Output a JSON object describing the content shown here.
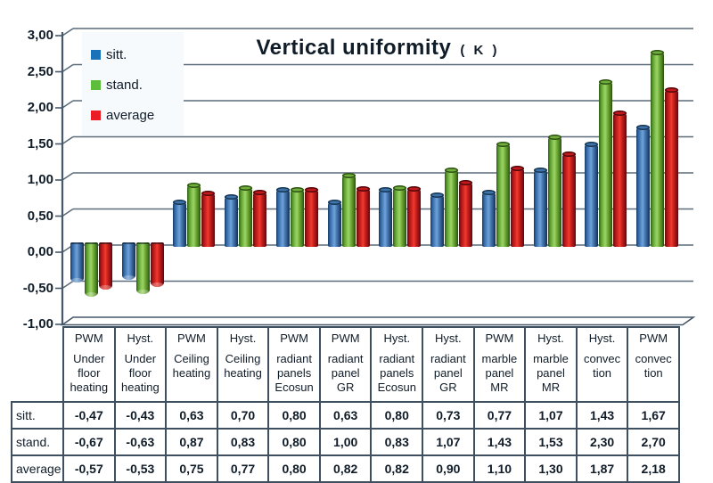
{
  "title": {
    "text": "Vertical uniformity",
    "suffix": "( K )"
  },
  "y_axis": {
    "ticks": [
      "3,00",
      "2,50",
      "2,00",
      "1,50",
      "1,00",
      "0,50",
      "0,00",
      "-0,50",
      "-1,00"
    ]
  },
  "legend": {
    "position": "top-left",
    "items": [
      {
        "label": "sitt.",
        "color": "#1a72b8"
      },
      {
        "label": "stand.",
        "color": "#5cbe3b"
      },
      {
        "label": "average",
        "color": "#ec1c24"
      }
    ]
  },
  "palette": {
    "grid": "#5a6b7a",
    "axis": "#46586a",
    "floor_fill": "#ffffff",
    "table_border": "#3e5060",
    "text": "#101c28",
    "legend_bg": "#f6fafd"
  },
  "chart_data": {
    "type": "bar",
    "style": "3d-cylinder",
    "title": "Vertical uniformity ( K )",
    "xlabel": "",
    "ylabel": "",
    "ylim": [
      -1.0,
      3.0
    ],
    "ytick_step": 0.5,
    "grid": true,
    "legend_position": "top-left",
    "categories": [
      "PWM Under floor heating",
      "Hyst. Under floor heating",
      "PWM Ceiling heating",
      "Hyst. Ceiling heating",
      "PWM radiant panels Ecosun",
      "PWM radiant panel GR",
      "Hyst. radiant panels Ecosun",
      "Hyst. radiant panel GR",
      "PWM marble panel MR",
      "Hyst. marble panel MR",
      "Hyst. convection",
      "PWM convection"
    ],
    "series": [
      {
        "name": "sitt.",
        "color": "#1a72b8",
        "values": [
          -0.47,
          -0.43,
          0.63,
          0.7,
          0.8,
          0.63,
          0.8,
          0.73,
          0.77,
          1.07,
          1.43,
          1.67
        ]
      },
      {
        "name": "stand.",
        "color": "#5cbe3b",
        "values": [
          -0.67,
          -0.63,
          0.87,
          0.83,
          0.8,
          1.0,
          0.83,
          1.07,
          1.43,
          1.53,
          2.3,
          2.7
        ]
      },
      {
        "name": "average",
        "color": "#ec1c24",
        "values": [
          -0.57,
          -0.53,
          0.75,
          0.77,
          0.8,
          0.82,
          0.82,
          0.9,
          1.1,
          1.3,
          1.87,
          2.18
        ]
      }
    ]
  },
  "table": {
    "columns": [
      {
        "mode": "PWM",
        "name": "Under floor heating"
      },
      {
        "mode": "Hyst.",
        "name": "Under floor heating"
      },
      {
        "mode": "PWM",
        "name": "Ceiling heating"
      },
      {
        "mode": "Hyst.",
        "name": "Ceiling heating"
      },
      {
        "mode": "PWM",
        "name": "radiant panels Ecosun"
      },
      {
        "mode": "PWM",
        "name": "radiant panel GR"
      },
      {
        "mode": "Hyst.",
        "name": "radiant panels Ecosun"
      },
      {
        "mode": "Hyst.",
        "name": "radiant panel GR"
      },
      {
        "mode": "PWM",
        "name": "marble panel MR"
      },
      {
        "mode": "Hyst.",
        "name": "marble panel MR"
      },
      {
        "mode": "Hyst.",
        "name": "convec tion"
      },
      {
        "mode": "PWM",
        "name": "convec tion"
      }
    ],
    "rows": [
      {
        "label": "sitt.",
        "values": [
          "-0,47",
          "-0,43",
          "0,63",
          "0,70",
          "0,80",
          "0,63",
          "0,80",
          "0,73",
          "0,77",
          "1,07",
          "1,43",
          "1,67"
        ]
      },
      {
        "label": "stand.",
        "values": [
          "-0,67",
          "-0,63",
          "0,87",
          "0,83",
          "0,80",
          "1,00",
          "0,83",
          "1,07",
          "1,43",
          "1,53",
          "2,30",
          "2,70"
        ]
      },
      {
        "label": "average",
        "values": [
          "-0,57",
          "-0,53",
          "0,75",
          "0,77",
          "0,80",
          "0,82",
          "0,82",
          "0,90",
          "1,10",
          "1,30",
          "1,87",
          "2,18"
        ]
      }
    ]
  }
}
